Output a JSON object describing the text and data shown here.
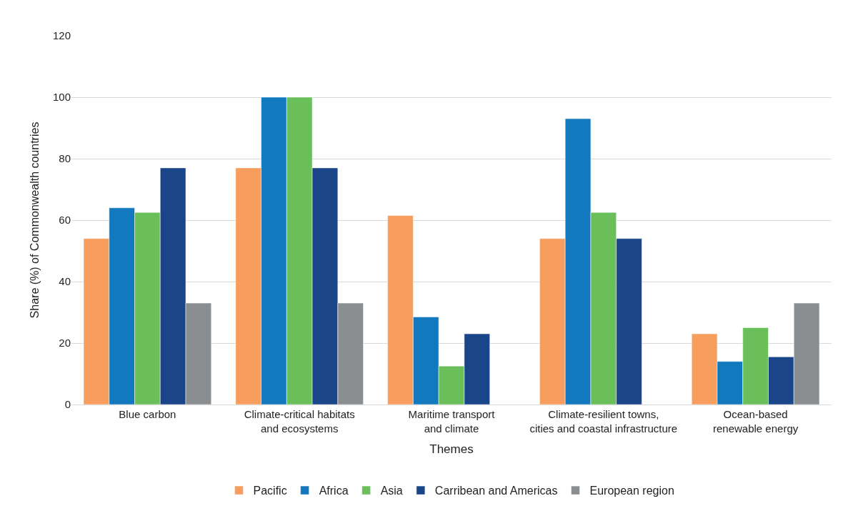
{
  "chart_data": {
    "type": "bar",
    "xlabel": "Themes",
    "ylabel": "Share (%) of Commonwealth countries",
    "categories": [
      "Blue carbon",
      "Climate-critical habitats\nand ecosystems",
      "Maritime transport\nand climate",
      "Climate-resilient towns,\ncities and coastal infrastructure",
      "Ocean-based\nrenewable energy"
    ],
    "series": [
      {
        "name": "Pacific",
        "color": "#f79e5e",
        "values": [
          54,
          77,
          61.5,
          54,
          23
        ]
      },
      {
        "name": "Africa",
        "color": "#1279be",
        "values": [
          64,
          100,
          28.5,
          93,
          14
        ]
      },
      {
        "name": "Asia",
        "color": "#6abf5a",
        "values": [
          62.5,
          100,
          12.5,
          62.5,
          25
        ]
      },
      {
        "name": "Carribean and Americas",
        "color": "#1b4589",
        "values": [
          77,
          77,
          23,
          54,
          15.5
        ]
      },
      {
        "name": "European region",
        "color": "#8a8e91",
        "values": [
          33,
          33,
          null,
          null,
          33
        ]
      }
    ],
    "ylim": [
      0,
      120
    ],
    "yticks": [
      0,
      20,
      40,
      60,
      80,
      100,
      120
    ],
    "grid": "y",
    "legend": "bottom"
  }
}
